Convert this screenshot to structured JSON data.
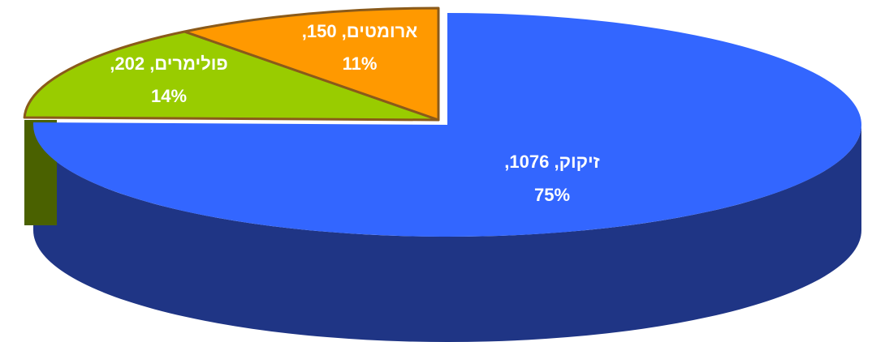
{
  "chart_data": {
    "type": "pie",
    "style": "3d-exploded",
    "title": "",
    "slices": [
      {
        "label": "זיקוק",
        "value": 1076,
        "percent": "75%",
        "line1": "זיקוק, 1076,",
        "line2": "75%",
        "top_color": "#3366ff",
        "side_color": "#1f3585"
      },
      {
        "label": "פולימרים",
        "value": 202,
        "percent": "14%",
        "line1": "פולימרים, 202,",
        "line2": "14%",
        "top_color": "#99cc00",
        "side_color": "#4a6100"
      },
      {
        "label": "ארומטים",
        "value": 150,
        "percent": "11%",
        "line1": "ארומטים, 150,",
        "line2": "11%",
        "top_color": "#ff9900",
        "side_color": "#8a5a1a"
      }
    ]
  }
}
